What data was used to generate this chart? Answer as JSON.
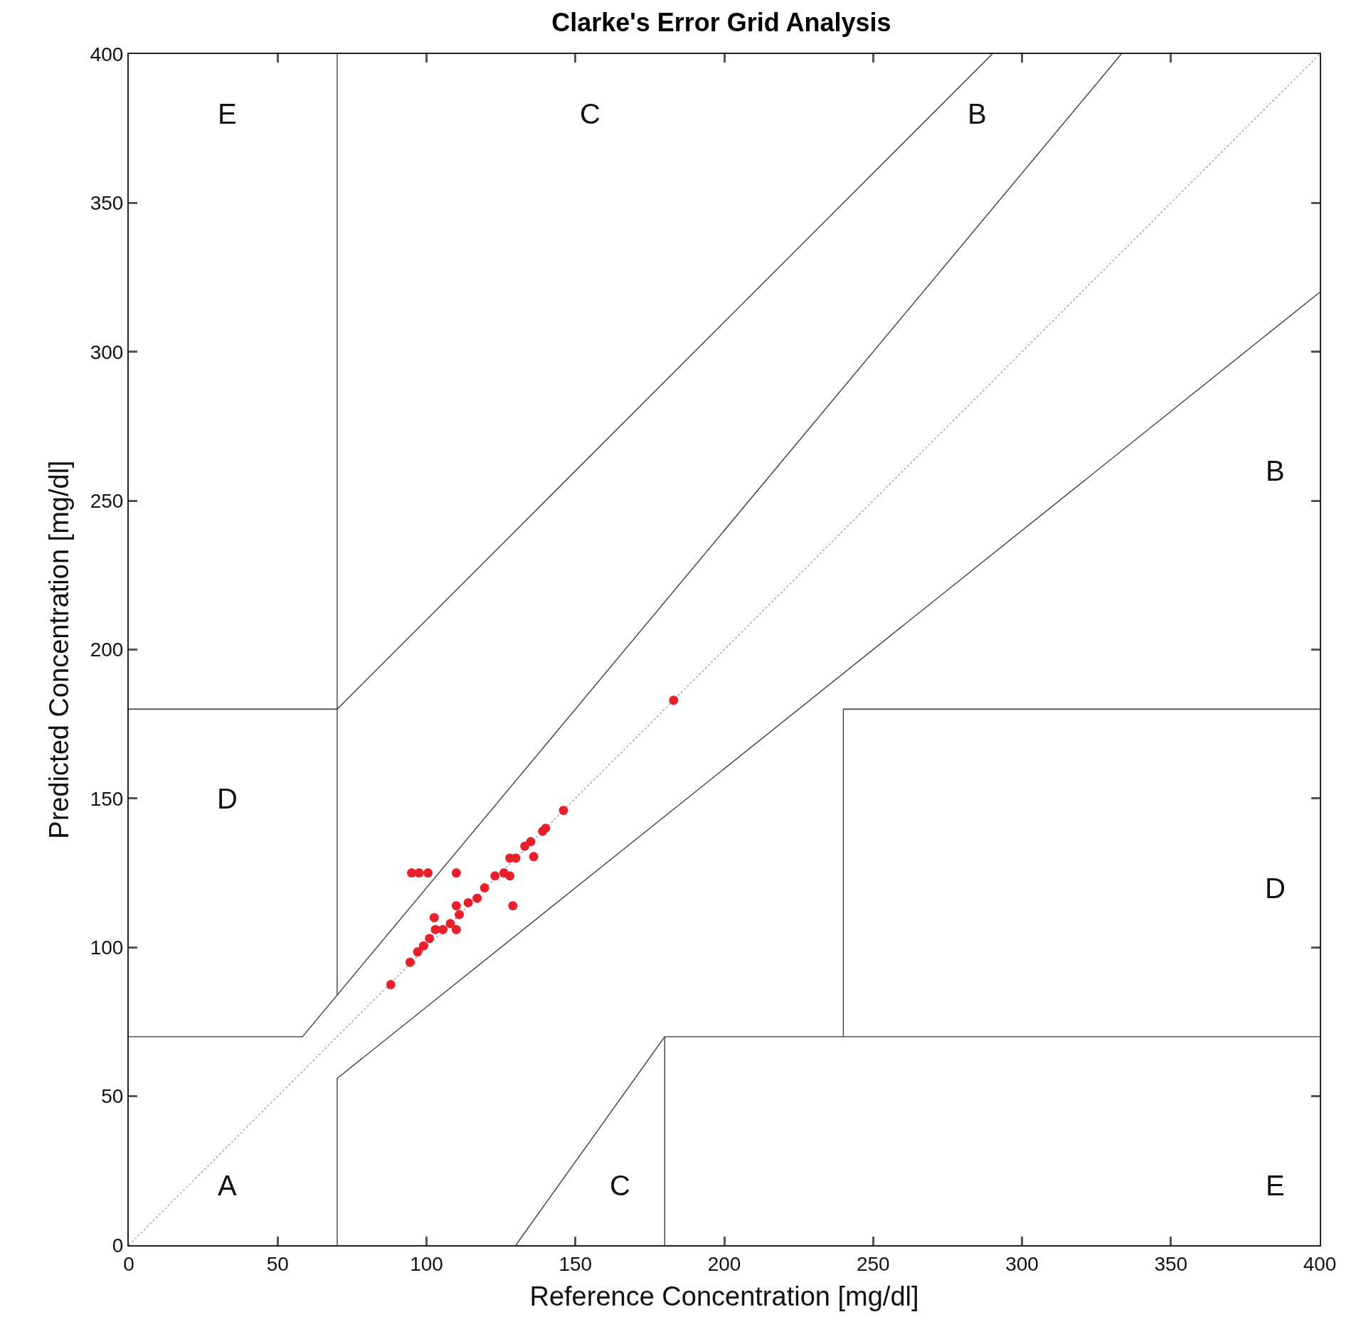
{
  "chart_data": {
    "type": "scatter",
    "title": "Clarke's Error Grid Analysis",
    "xlabel": "Reference Concentration [mg/dl]",
    "ylabel": "Predicted Concentration [mg/dl]",
    "xlim": [
      0,
      400
    ],
    "ylim": [
      0,
      400
    ],
    "xticks": [
      0,
      50,
      100,
      150,
      200,
      250,
      300,
      350,
      400
    ],
    "yticks": [
      0,
      50,
      100,
      150,
      200,
      250,
      300,
      350,
      400
    ],
    "marker": "circle",
    "series": [
      {
        "type": "line",
        "color": "#999999",
        "line_style": "dotted",
        "marker": "none",
        "x": [
          0,
          400
        ],
        "values": [
          0,
          400
        ]
      },
      {
        "type": "line",
        "color": "#333333",
        "line_style": "solid",
        "marker": "none",
        "x": [
          0,
          58.33,
          333.33
        ],
        "values": [
          70,
          70,
          400
        ]
      },
      {
        "type": "line",
        "color": "#333333",
        "line_style": "solid",
        "marker": "none",
        "x": [
          70,
          70,
          400
        ],
        "values": [
          0,
          56,
          320
        ]
      },
      {
        "type": "line",
        "color": "#333333",
        "line_style": "solid",
        "marker": "none",
        "x": [
          70,
          70
        ],
        "values": [
          84,
          400
        ]
      },
      {
        "type": "line",
        "color": "#333333",
        "line_style": "solid",
        "marker": "none",
        "x": [
          0,
          70,
          290
        ],
        "values": [
          180,
          180,
          400
        ]
      },
      {
        "type": "line",
        "color": "#333333",
        "line_style": "solid",
        "marker": "none",
        "x": [
          130,
          180,
          180
        ],
        "values": [
          0,
          70,
          0
        ]
      },
      {
        "type": "line",
        "color": "#333333",
        "line_style": "solid",
        "marker": "none",
        "x": [
          180,
          400
        ],
        "values": [
          70,
          70
        ]
      },
      {
        "type": "line",
        "color": "#333333",
        "line_style": "solid",
        "marker": "none",
        "x": [
          240,
          240,
          400
        ],
        "values": [
          70,
          180,
          180
        ]
      },
      {
        "color": "#e8202a",
        "x": [
          183,
          146,
          139,
          140,
          135,
          136,
          133,
          130,
          128,
          128,
          126,
          123,
          129,
          119.5,
          117,
          114,
          110,
          110,
          100.5,
          95,
          97.5,
          111,
          108,
          105.5,
          102.6,
          103,
          101,
          99,
          97,
          94.5,
          88,
          110
        ],
        "values": [
          183,
          146,
          139,
          140,
          135.5,
          130.5,
          134,
          130,
          130,
          124,
          125,
          124,
          114,
          120,
          116.5,
          115,
          114,
          125,
          125,
          125,
          125,
          111,
          108,
          106,
          110,
          106,
          103,
          100.5,
          98.5,
          95,
          87.5,
          106
        ]
      }
    ],
    "annotations": [
      "E",
      "C",
      "B",
      "B",
      "D",
      "D",
      "A",
      "C",
      "E"
    ]
  }
}
